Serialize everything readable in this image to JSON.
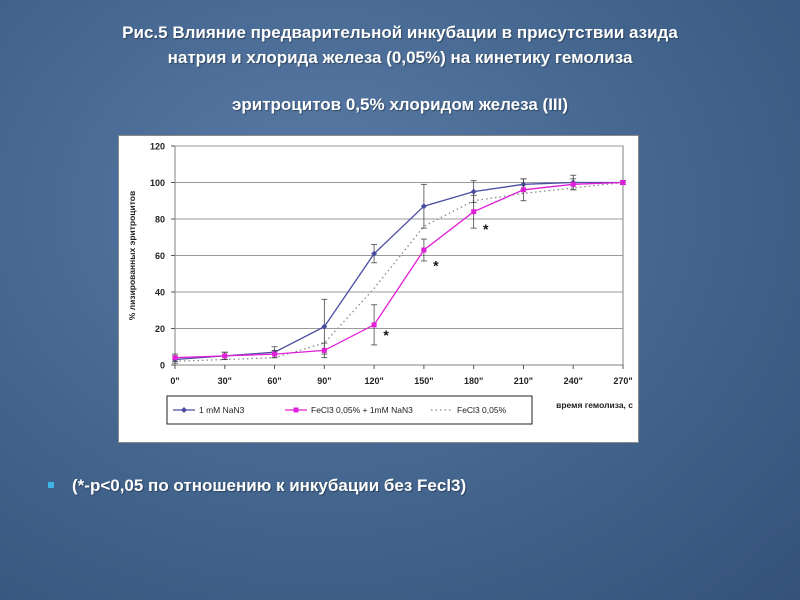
{
  "slide": {
    "title_line1": "Рис.5   Влияние предварительной инкубации в присутствии азида",
    "title_line2": "натрия и хлорида железа (0,05%) на кинетику гемолиза",
    "title_line3": "эритроцитов 0,5% хлоридом железа (III)",
    "note": "(*-р<0,05 по отношению к инкубации без Fecl3)",
    "bullet_color": "#3fb4e6"
  },
  "chart_data": {
    "type": "line",
    "title": "",
    "xlabel": "время гемолиза, с",
    "ylabel": "% лизированных эритроцитов",
    "categories": [
      "0\"",
      "30\"",
      "60\"",
      "90\"",
      "120\"",
      "150\"",
      "180\"",
      "210\"",
      "240\"",
      "270\""
    ],
    "ylim": [
      0,
      120
    ],
    "yticks": [
      0,
      20,
      40,
      60,
      80,
      100,
      120
    ],
    "grid": true,
    "legend_position": "bottom",
    "series": [
      {
        "name": "1 mM NaN3",
        "color": "#4b4ea0",
        "style": "solid",
        "marker": "diamond",
        "values": [
          3,
          5,
          7,
          21,
          61,
          87,
          95,
          99,
          100,
          100
        ],
        "errors": [
          2,
          2,
          3,
          15,
          5,
          12,
          6,
          3,
          4,
          1
        ]
      },
      {
        "name": "FeCl3 0,05% + 1mM NaN3",
        "color": "#e020d8",
        "style": "solid",
        "marker": "square",
        "values": [
          4,
          5,
          6,
          8,
          22,
          63,
          84,
          96,
          99,
          100
        ],
        "errors": [
          2,
          2,
          2,
          4,
          11,
          6,
          9,
          6,
          3,
          1
        ]
      },
      {
        "name": "FeCl3 0,05%",
        "color": "#888888",
        "style": "dotted",
        "marker": "none",
        "values": [
          2,
          3,
          4,
          12,
          42,
          76,
          90,
          94,
          97,
          100
        ],
        "errors": []
      }
    ],
    "annotations": [
      {
        "text": "*",
        "category_index": 4,
        "y": 17
      },
      {
        "text": "*",
        "category_index": 5,
        "y": 55
      },
      {
        "text": "*",
        "category_index": 6,
        "y": 75
      }
    ]
  }
}
